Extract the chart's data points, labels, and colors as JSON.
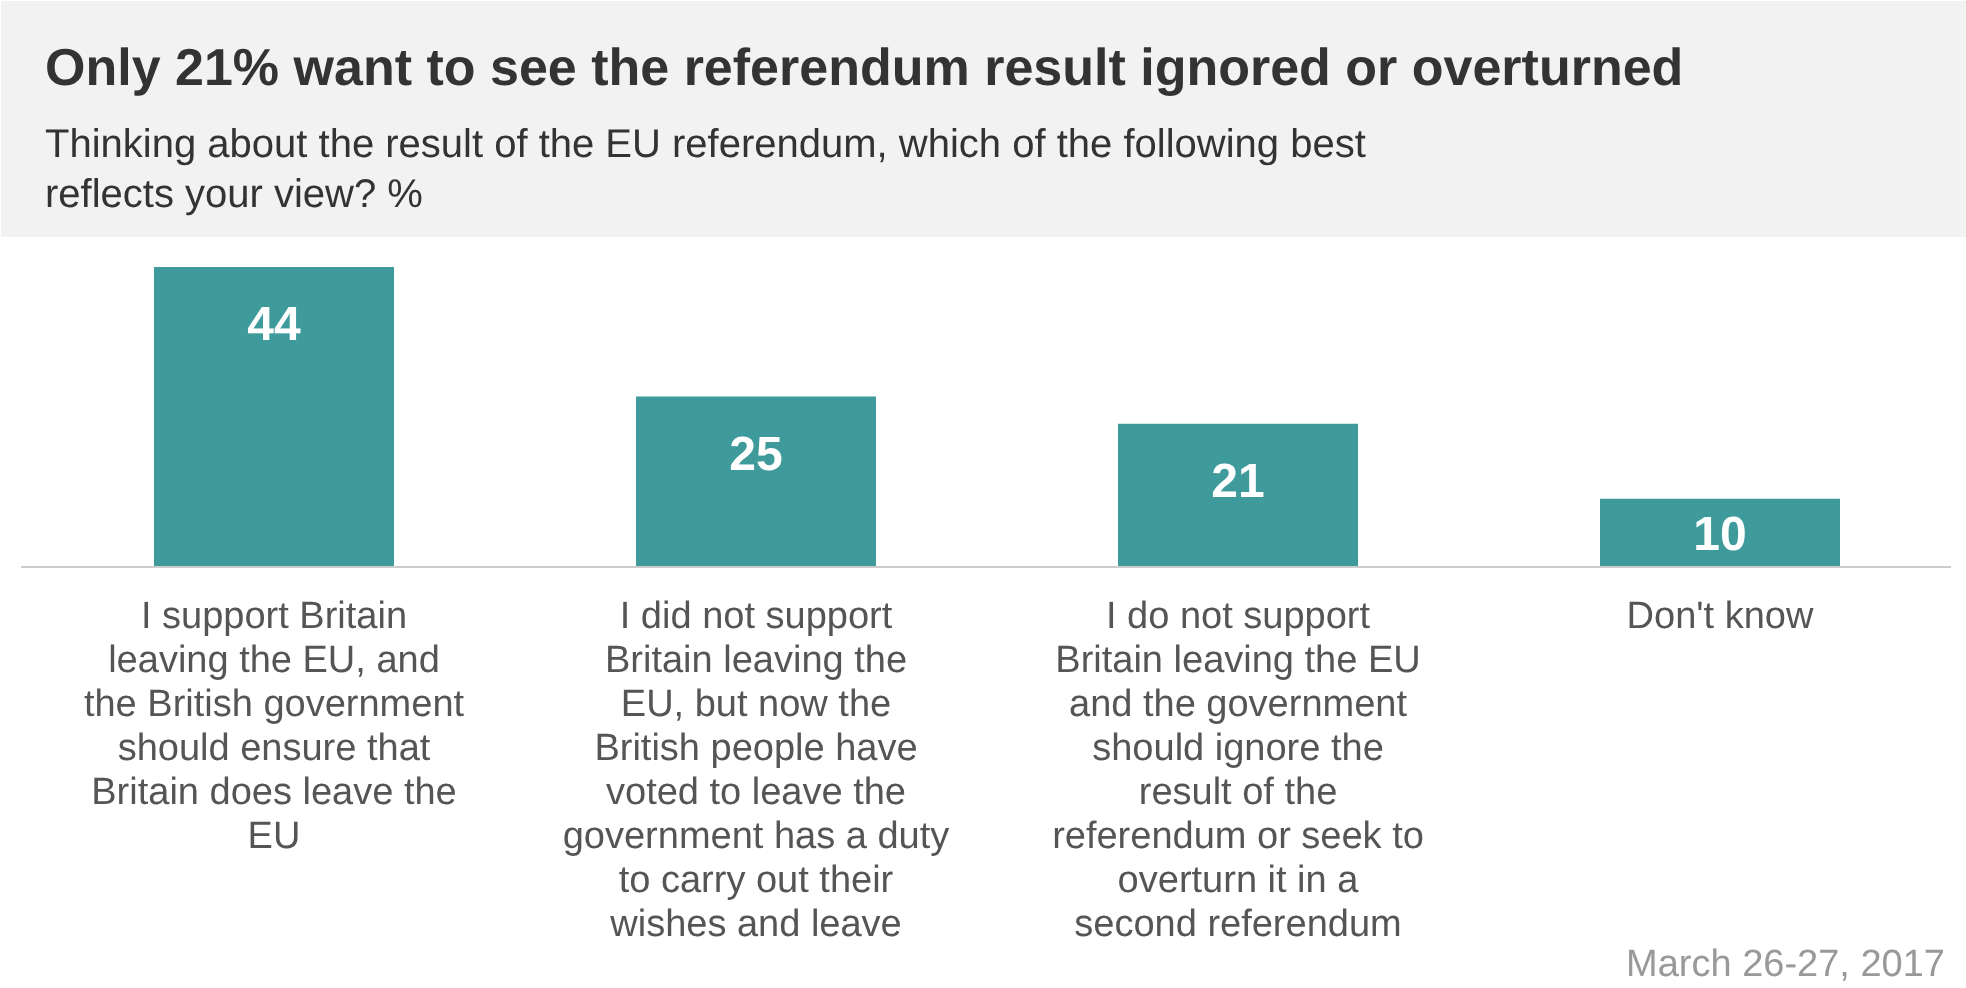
{
  "chart_data": {
    "type": "bar",
    "title": "Only 21% want to see the referendum result ignored or overturned",
    "subtitle": "Thinking about the result of the EU referendum, which of the following best reflects your view? %",
    "categories": [
      "I support Britain leaving the EU, and the British government should ensure that Britain does leave the EU",
      "I did not support Britain leaving the EU, but now the British people have voted to leave the government has a duty to carry out their wishes and leave",
      "I do not support Britain leaving the EU and the government should ignore the result of the referendum or seek to overturn it in a second referendum",
      "Don't know"
    ],
    "values": [
      44,
      25,
      21,
      10
    ],
    "color": "#3f9b9b",
    "data_labels": true,
    "annotations": [
      "March 26-27, 2017"
    ]
  }
}
